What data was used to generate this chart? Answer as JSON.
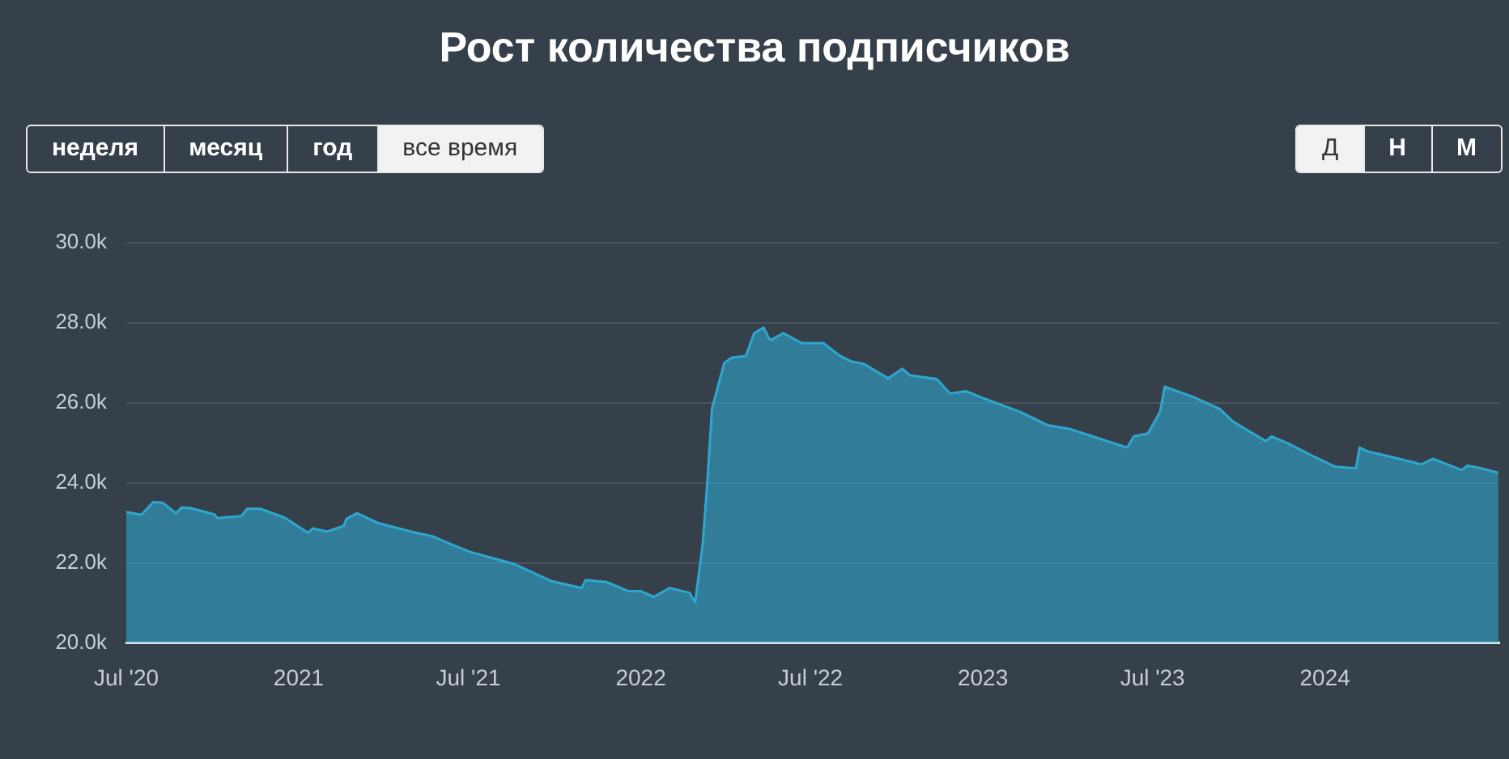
{
  "chart_data": {
    "type": "area",
    "title": "Рост количества подписчиков",
    "annotations": [
      "неделя",
      "месяц",
      "год",
      "все время",
      "Д",
      "Н",
      "М"
    ],
    "x": [
      "2020-07-01",
      "2020-07-17",
      "2020-07-30",
      "2020-08-09",
      "2020-08-23",
      "2020-08-29",
      "2020-09-07",
      "2020-10-03",
      "2020-10-06",
      "2020-11-01",
      "2020-11-07",
      "2020-11-21",
      "2020-12-17",
      "2021-01-11",
      "2021-01-16",
      "2021-01-31",
      "2021-02-18",
      "2021-02-21",
      "2021-03-04",
      "2021-03-27",
      "2021-05-01",
      "2021-05-24",
      "2021-06-10",
      "2021-07-03",
      "2021-08-19",
      "2021-09-28",
      "2021-10-30",
      "2021-11-03",
      "2021-11-25",
      "2021-12-18",
      "2022-01-01",
      "2022-01-15",
      "2022-02-01",
      "2022-02-22",
      "2022-02-28",
      "2022-03-08",
      "2022-03-13",
      "2022-03-18",
      "2022-03-31",
      "2022-04-08",
      "2022-04-23",
      "2022-05-02",
      "2022-05-12",
      "2022-05-18",
      "2022-05-20",
      "2022-06-02",
      "2022-06-22",
      "2022-07-15",
      "2022-08-01",
      "2022-08-13",
      "2022-08-27",
      "2022-09-22",
      "2022-10-07",
      "2022-10-15",
      "2022-11-13",
      "2022-11-27",
      "2022-12-14",
      "2023-01-01",
      "2023-02-10",
      "2023-03-11",
      "2023-04-03",
      "2023-05-02",
      "2023-06-04",
      "2023-06-11",
      "2023-06-26",
      "2023-07-09",
      "2023-07-14",
      "2023-08-13",
      "2023-09-11",
      "2023-09-25",
      "2023-10-30",
      "2023-11-05",
      "2023-11-22",
      "2023-12-18",
      "2024-01-12",
      "2024-02-03",
      "2024-02-07",
      "2024-02-16",
      "2024-03-13",
      "2024-04-13",
      "2024-04-25",
      "2024-05-26",
      "2024-06-01",
      "2024-06-16",
      "2024-07-04"
    ],
    "series": [
      {
        "color": "#2fa6cf",
        "values": [
          23270,
          23200,
          23520,
          23500,
          23240,
          23380,
          23370,
          23210,
          23120,
          23170,
          23350,
          23350,
          23130,
          22750,
          22860,
          22780,
          22920,
          23100,
          23240,
          22990,
          22780,
          22660,
          22490,
          22270,
          21970,
          21540,
          21370,
          21570,
          21520,
          21300,
          21290,
          21150,
          21370,
          21250,
          21010,
          22460,
          24020,
          25860,
          26990,
          27130,
          27170,
          27740,
          27880,
          27600,
          27570,
          27740,
          27490,
          27490,
          27180,
          27040,
          26970,
          26610,
          26850,
          26690,
          26590,
          26230,
          26290,
          26120,
          25770,
          25440,
          25350,
          25130,
          24880,
          25160,
          25230,
          25770,
          26400,
          26150,
          25840,
          25530,
          25040,
          25160,
          24990,
          24680,
          24400,
          24360,
          24880,
          24780,
          24640,
          24460,
          24600,
          24320,
          24430,
          24360,
          24250
        ]
      }
    ],
    "xlim": [
      "2020-07-01",
      "2024-07-05"
    ],
    "xticks": [
      {
        "value": "2020-07-01",
        "label": "Jul '20"
      },
      {
        "value": "2021-01-01",
        "label": "2021"
      },
      {
        "value": "2021-07-01",
        "label": "Jul '21"
      },
      {
        "value": "2022-01-01",
        "label": "2022"
      },
      {
        "value": "2022-07-01",
        "label": "Jul '22"
      },
      {
        "value": "2023-01-01",
        "label": "2023"
      },
      {
        "value": "2023-07-01",
        "label": "Jul '23"
      },
      {
        "value": "2024-01-01",
        "label": "2024"
      }
    ],
    "ylim": [
      20000,
      30000
    ],
    "yticks": [
      {
        "value": 20000,
        "label": "20.0k"
      },
      {
        "value": 22000,
        "label": "22.0k"
      },
      {
        "value": 24000,
        "label": "24.0k"
      },
      {
        "value": 26000,
        "label": "26.0k"
      },
      {
        "value": 28000,
        "label": "28.0k"
      },
      {
        "value": 30000,
        "label": "30.0k"
      }
    ],
    "grid": "y",
    "legend": false,
    "marker": "none",
    "line_style": "solid"
  }
}
